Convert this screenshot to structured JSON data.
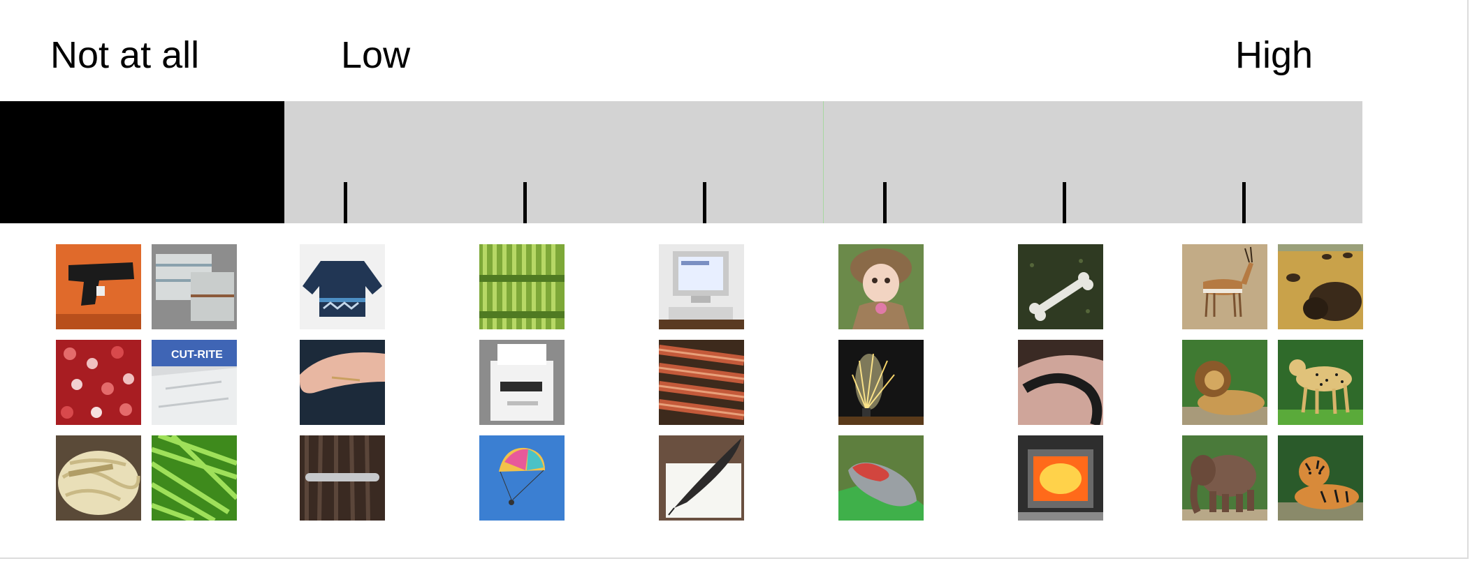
{
  "scale_labels": {
    "not_at_all": "Not at all",
    "low": "Low",
    "high": "High"
  },
  "colors": {
    "scale_bar": "#d3d3d3",
    "not_at_all_segment": "#000000",
    "tick": "#000000",
    "midline": "#a8d8a0"
  },
  "ticks_count": 6,
  "image_columns": [
    {
      "group": "not-at-all",
      "images": [
        "handgun",
        "folded-cloth",
        "red-sequins",
        "aluminum-foil-roll",
        "sauerkraut",
        "green-beans"
      ]
    },
    {
      "group": "level-1",
      "images": [
        "knit-sweater",
        "splinter-in-finger",
        "hair-barrette"
      ]
    },
    {
      "group": "level-2",
      "images": [
        "asparagus",
        "printer",
        "parachute"
      ]
    },
    {
      "group": "level-3",
      "images": [
        "computer-monitor",
        "bacon",
        "quill-pen"
      ]
    },
    {
      "group": "level-4",
      "images": [
        "doll",
        "firework-fountain",
        "sleeping-bag"
      ]
    },
    {
      "group": "level-5",
      "images": [
        "bone",
        "snake-on-arm",
        "furnace-fire"
      ]
    },
    {
      "group": "high",
      "images": [
        "gazelle",
        "bison",
        "lion",
        "cheetah",
        "elephant",
        "tiger"
      ]
    }
  ]
}
